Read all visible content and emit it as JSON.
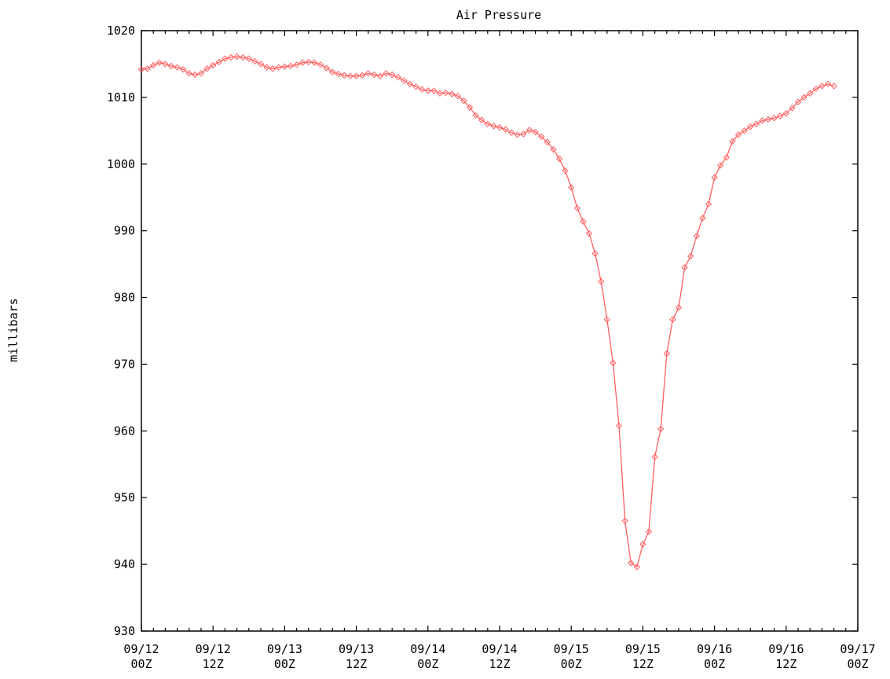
{
  "chart_data": {
    "type": "line",
    "title": "Air Pressure",
    "xlabel": "",
    "ylabel": "millibars",
    "ylim": [
      930,
      1020
    ],
    "yticks": [
      930,
      940,
      950,
      960,
      970,
      980,
      990,
      1000,
      1010,
      1020
    ],
    "xlim_hours": [
      0,
      120
    ],
    "xticks": [
      {
        "hour": 0,
        "date": "09/12",
        "time": "00Z"
      },
      {
        "hour": 12,
        "date": "09/12",
        "time": "12Z"
      },
      {
        "hour": 24,
        "date": "09/13",
        "time": "00Z"
      },
      {
        "hour": 36,
        "date": "09/13",
        "time": "12Z"
      },
      {
        "hour": 48,
        "date": "09/14",
        "time": "00Z"
      },
      {
        "hour": 60,
        "date": "09/14",
        "time": "12Z"
      },
      {
        "hour": 72,
        "date": "09/15",
        "time": "00Z"
      },
      {
        "hour": 84,
        "date": "09/15",
        "time": "12Z"
      },
      {
        "hour": 96,
        "date": "09/16",
        "time": "00Z"
      },
      {
        "hour": 108,
        "date": "09/16",
        "time": "12Z"
      },
      {
        "hour": 120,
        "date": "09/17",
        "time": "00Z"
      }
    ],
    "grid": false,
    "colors": {
      "series": "#ff6060",
      "axes": "#000000"
    },
    "series": [
      {
        "x": [
          0,
          1,
          2,
          3,
          4,
          5,
          6,
          7,
          8,
          9,
          10,
          11,
          12,
          13,
          14,
          15,
          16,
          17,
          18,
          19,
          20,
          21,
          22,
          23,
          24,
          25,
          26,
          27,
          28,
          29,
          30,
          31,
          32,
          33,
          34,
          35,
          36,
          37,
          38,
          39,
          40,
          41,
          42,
          43,
          44,
          45,
          46,
          47,
          48,
          49,
          50,
          51,
          52,
          53,
          54,
          55,
          56,
          57,
          58,
          59,
          60,
          61,
          62,
          63,
          64,
          65,
          66,
          67,
          68,
          69,
          70,
          71,
          72,
          73,
          74,
          75,
          76,
          77,
          78,
          79,
          80,
          81,
          82,
          83,
          84,
          85,
          86,
          87,
          88,
          89,
          90,
          91,
          92,
          93,
          94,
          95,
          96,
          97,
          98,
          99,
          100,
          101,
          102,
          103,
          104,
          105,
          106,
          107,
          108,
          109,
          110,
          111,
          112,
          113,
          114,
          115,
          116
        ],
        "values": [
          1014.2,
          1014.3,
          1014.8,
          1015.2,
          1015.0,
          1014.7,
          1014.5,
          1014.2,
          1013.6,
          1013.4,
          1013.6,
          1014.3,
          1014.8,
          1015.3,
          1015.8,
          1016.0,
          1016.1,
          1016.0,
          1015.8,
          1015.4,
          1015.0,
          1014.5,
          1014.3,
          1014.5,
          1014.6,
          1014.7,
          1014.9,
          1015.2,
          1015.3,
          1015.2,
          1014.9,
          1014.4,
          1013.8,
          1013.5,
          1013.3,
          1013.2,
          1013.2,
          1013.3,
          1013.6,
          1013.4,
          1013.2,
          1013.6,
          1013.4,
          1013.0,
          1012.5,
          1012.0,
          1011.6,
          1011.2,
          1011.0,
          1011.0,
          1010.6,
          1010.7,
          1010.5,
          1010.2,
          1009.5,
          1008.5,
          1007.3,
          1006.6,
          1006.0,
          1005.7,
          1005.5,
          1005.2,
          1004.7,
          1004.4,
          1004.5,
          1005.1,
          1004.8,
          1004.1,
          1003.3,
          1002.2,
          1000.8,
          999.0,
          996.5,
          993.4,
          991.4,
          989.6,
          986.6,
          982.4,
          976.7,
          970.2,
          960.8,
          946.5,
          940.2,
          939.6,
          943.0,
          944.9,
          956.1,
          960.3,
          971.6,
          976.7,
          978.5,
          984.5,
          986.2,
          989.2,
          991.9,
          994.0,
          998.0,
          999.8,
          1001.0,
          1003.4,
          1004.4,
          1005.0,
          1005.6,
          1006.0,
          1006.5,
          1006.7,
          1006.9,
          1007.2,
          1007.6,
          1008.4,
          1009.3,
          1010.0,
          1010.6,
          1011.3,
          1011.7,
          1012.0,
          1011.7
        ]
      }
    ]
  }
}
